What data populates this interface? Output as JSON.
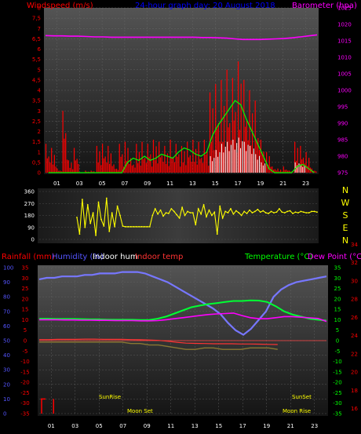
{
  "header": {
    "windspeed_label": "Windspeed (m/s)",
    "title": "24-hour graph day:  20 August 2018",
    "barometer_label": "Barometer (hpa)",
    "rainfall_label": "Rainfall (mm)",
    "humidity_label": "Humidity (%)",
    "indoor_hum_label": "Indoor hum",
    "indoor_temp_label": "Indoor temp",
    "temperature_label": "Temperature (°C)",
    "dewpoint_label": "Dew Point (°C)"
  },
  "colors": {
    "wind": "#ff0000",
    "gust": "#ffffff",
    "avg": "#00ff00",
    "baro": "#ff00ff",
    "dir": "#ffff00",
    "humidity": "#7777ff",
    "temperature": "#00ff33",
    "dewpoint": "#ff00ff",
    "indoor_temp": "#ff3333",
    "indoor_hum": "#887733",
    "rain": "#ff0000",
    "title": "#0000ff",
    "text_red": "#ff0000",
    "humidity_text": "#5555ff",
    "temp_text": "#00ff00",
    "dew_text": "#ff00ff"
  },
  "annotations": {
    "sunrise": "SunRise",
    "sunset": "SunSet",
    "moonset": "Moon Set",
    "moonrise": "Moon Rise"
  },
  "chart_data": [
    {
      "type": "bar",
      "name": "wind",
      "x_ticks": [
        "01",
        "03",
        "05",
        "07",
        "09",
        "11",
        "13",
        "15",
        "17",
        "19",
        "21",
        "23"
      ],
      "y_left_ticks": [
        "0",
        "0,5",
        "1",
        "1,5",
        "2",
        "2,5",
        "3",
        "3,5",
        "4",
        "4,5",
        "5",
        "5,5",
        "6",
        "6,5",
        "7",
        "7,5",
        "8"
      ],
      "ylim_left": [
        0,
        8
      ],
      "y_right_ticks": [
        "975",
        "980",
        "985",
        "990",
        "995",
        "1000",
        "1005",
        "1010",
        "1015",
        "1020",
        "1025"
      ],
      "ylim_right": [
        975,
        1025
      ],
      "hourly_peak_windspeed": [
        1.4,
        1.2,
        0.2,
        3.0,
        0.6,
        1.2,
        0.0,
        0.1,
        0.1,
        1.3,
        1.4,
        1.3,
        0.4,
        1.4,
        1.5,
        0.7,
        1.4,
        1.5,
        1.4,
        1.6,
        1.5,
        1.3,
        1.6,
        1.4,
        1.3,
        1.5,
        1.6,
        1.5,
        1.6,
        3.9,
        4.3,
        4.5,
        5.0,
        4.6,
        5.4,
        4.5,
        4.0,
        3.5,
        1.6,
        1.0,
        0.3,
        0.2,
        0.3,
        0.1,
        1.5,
        1.3,
        1.0,
        0.2
      ],
      "hourly_gust_windspeed": [
        0,
        0,
        0,
        0,
        0,
        0,
        0,
        0,
        0,
        0,
        0,
        0,
        0,
        0,
        0,
        0,
        0,
        0,
        0,
        0,
        0,
        0,
        0,
        0,
        0,
        0,
        0,
        0,
        0,
        0.8,
        1.1,
        1.4,
        1.5,
        1.6,
        1.7,
        1.5,
        1.3,
        0.9,
        0.5,
        0,
        0,
        0,
        0,
        0,
        0.5,
        0.4,
        0,
        0
      ],
      "avg_windspeed": [
        0,
        0,
        0,
        0,
        0,
        0,
        0,
        0,
        0,
        0,
        0,
        0,
        0,
        0,
        0.5,
        0.7,
        0.6,
        0.8,
        0.6,
        0.7,
        0.9,
        0.8,
        0.7,
        1.0,
        1.2,
        1.1,
        0.9,
        0.8,
        1.0,
        1.8,
        2.3,
        2.7,
        3.1,
        3.5,
        3.3,
        2.6,
        2.0,
        1.4,
        0.8,
        0.2,
        0,
        0,
        0,
        0,
        0.3,
        0.4,
        0.2,
        0
      ],
      "barometer_hpa": [
        1016.6,
        1016.5,
        1016.5,
        1016.4,
        1016.4,
        1016.3,
        1016.2,
        1016.2,
        1016.1,
        1016.1,
        1016.1,
        1016.1,
        1016.1,
        1016.1,
        1016.1,
        1016.1,
        1016.1,
        1016.1,
        1016.1,
        1016.0,
        1016.0,
        1015.9,
        1015.8,
        1015.6,
        1015.4,
        1015.4,
        1015.4,
        1015.5,
        1015.6,
        1015.7,
        1015.9,
        1016.2,
        1016.5,
        1016.8
      ]
    },
    {
      "type": "scatter",
      "name": "wind-direction",
      "y_ticks": [
        "0",
        "90",
        "180",
        "270",
        "360"
      ],
      "ylim": [
        0,
        360
      ],
      "direction_labels": [
        "N",
        "W",
        "S",
        "E",
        "N"
      ],
      "degrees": [
        165,
        40,
        300,
        90,
        260,
        120,
        200,
        30,
        280,
        150,
        100,
        310,
        60,
        200,
        95,
        250,
        180,
        100,
        95,
        95,
        95,
        95,
        95,
        95,
        95,
        95,
        95,
        95,
        180,
        230,
        190,
        220,
        175,
        200,
        195,
        230,
        210,
        185,
        160,
        240,
        180,
        210,
        200,
        200,
        110,
        230,
        190,
        260,
        170,
        220,
        180,
        205,
        40,
        250,
        160,
        210,
        200,
        230,
        190,
        215,
        200,
        180,
        210,
        195,
        220,
        200,
        210,
        225,
        205,
        215,
        200,
        195,
        210,
        200,
        205,
        230,
        205,
        200,
        210,
        215,
        195,
        205,
        200,
        210,
        205,
        200,
        200,
        210,
        210,
        205
      ]
    },
    {
      "type": "line",
      "name": "humidity-temperature",
      "x_ticks": [
        "01",
        "03",
        "05",
        "07",
        "09",
        "11",
        "13",
        "15",
        "17",
        "19",
        "21",
        "23"
      ],
      "y_left_ticks": [
        "0",
        "10",
        "20",
        "30",
        "40",
        "50",
        "60",
        "70",
        "80",
        "90",
        "100"
      ],
      "ylim_left": [
        0,
        100
      ],
      "y_mid_ticks": [
        "-35",
        "-30",
        "-25",
        "-20",
        "-15",
        "-10",
        "-5",
        "0",
        "5",
        "10",
        "15",
        "20",
        "25",
        "30",
        "35"
      ],
      "ylim_temp": [
        -35,
        35
      ],
      "y_right_ticks": [
        "16",
        "18",
        "20",
        "22",
        "24",
        "26",
        "28",
        "30",
        "32",
        "34"
      ],
      "humidity_pct": [
        92,
        93,
        93,
        94,
        94,
        94,
        95,
        95,
        96,
        96,
        96,
        97,
        97,
        97,
        96,
        94,
        92,
        90,
        87,
        84,
        81,
        78,
        75,
        72,
        68,
        62,
        57,
        54,
        58,
        64,
        70,
        80,
        85,
        88,
        90,
        91,
        92,
        93,
        94
      ],
      "temperature_c": [
        10.5,
        10.5,
        10.4,
        10.4,
        10.4,
        10.3,
        10.2,
        10.2,
        10.1,
        10.0,
        10.0,
        10.0,
        9.9,
        9.9,
        10.5,
        11.5,
        13.0,
        14.5,
        16.0,
        16.8,
        17.5,
        18.0,
        18.5,
        19.0,
        19.0,
        19.3,
        19.2,
        18.5,
        16.5,
        14.0,
        12.5,
        11.5,
        10.5,
        10.0,
        9.6
      ],
      "dewpoint_c": [
        10.0,
        10.0,
        10.0,
        9.9,
        9.9,
        9.8,
        9.8,
        9.7,
        9.7,
        9.6,
        9.6,
        9.6,
        9.5,
        9.5,
        9.6,
        10.0,
        10.5,
        11.0,
        11.5,
        12.0,
        12.5,
        12.8,
        13.0,
        13.2,
        12.0,
        11.0,
        10.5,
        10.5,
        11.0,
        11.5,
        11.5,
        11.2,
        10.9,
        10.6,
        9.2
      ],
      "indoor_temp_c": [
        0.5,
        0.5,
        0.6,
        0.6,
        0.6,
        0.7,
        0.7,
        0.6,
        0.6,
        0.6,
        0.5,
        0.4,
        0.3,
        0.1,
        -0.3,
        -0.8,
        -1.2,
        -1.3,
        -1.4,
        -1.5,
        -1.5,
        -1.5,
        -1.6,
        -1.6,
        -1.7,
        -1.8,
        -1.9
      ],
      "indoor_humidity_pct": [
        49,
        49,
        49,
        49,
        49,
        49,
        49,
        49,
        49,
        49,
        48,
        48,
        47,
        47,
        46,
        45,
        44,
        44,
        45,
        45,
        44,
        44,
        44,
        45,
        45,
        45,
        44
      ]
    },
    {
      "type": "bar",
      "name": "rainfall",
      "rainfall_mm": [
        10,
        10,
        0,
        0,
        0,
        0,
        0,
        0,
        0,
        0,
        0,
        0,
        0,
        0,
        0,
        0,
        0,
        0,
        0,
        0,
        0,
        0,
        0,
        0
      ]
    }
  ]
}
